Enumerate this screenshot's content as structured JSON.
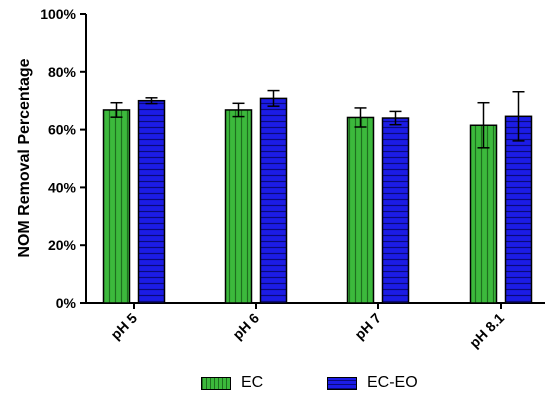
{
  "chart_data": {
    "type": "bar",
    "title": "",
    "xlabel": "",
    "ylabel": "NOM Removal Percentage",
    "ylim": [
      0,
      100
    ],
    "yticks": [
      "0%",
      "20%",
      "40%",
      "60%",
      "80%",
      "100%"
    ],
    "categories": [
      "pH 5",
      "pH 6",
      "pH 7",
      "pH 8.1"
    ],
    "series": [
      {
        "name": "EC",
        "values": [
          66.8,
          66.8,
          64.2,
          61.5
        ],
        "errors": [
          2.5,
          2.3,
          3.3,
          7.8
        ],
        "color": "#33aa33"
      },
      {
        "name": "EC-EO",
        "values": [
          70.0,
          70.8,
          64.0,
          64.6
        ],
        "errors": [
          1.0,
          2.7,
          2.3,
          8.5
        ],
        "color": "#1d1de0"
      }
    ],
    "grid": false,
    "legend_position": "bottom"
  }
}
